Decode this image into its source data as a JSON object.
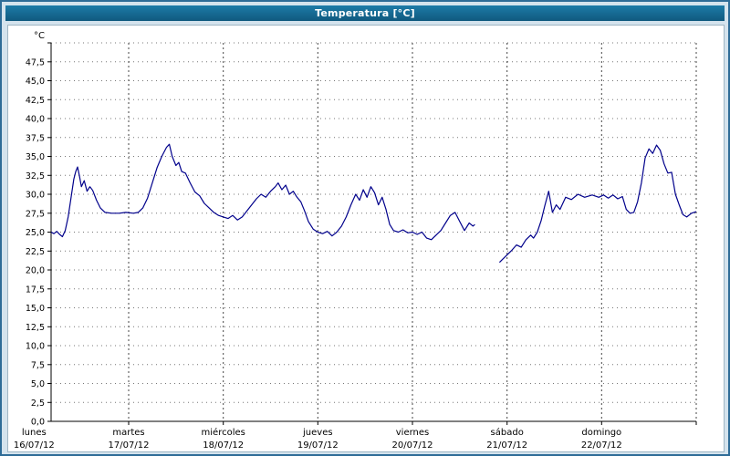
{
  "window": {
    "title": "Temperatura [°C]"
  },
  "colors": {
    "title_bar": "#16688e",
    "title_text": "#ffffff",
    "background": "#d4e3ed",
    "panel": "#ffffff",
    "axis": "#000000",
    "grid_horizontal": "#777777",
    "grid_vertical": "#444444",
    "line": "#00008b"
  },
  "chart_data": {
    "type": "line",
    "title": "Temperatura [°C]",
    "unit_label": "°C",
    "ylim": [
      0,
      50
    ],
    "ytick_step": 2.5,
    "ytick_labels": [
      "0,0",
      "2,5",
      "5,0",
      "7,5",
      "10,0",
      "12,5",
      "15,0",
      "17,5",
      "20,0",
      "22,5",
      "25,0",
      "27,5",
      "30,0",
      "32,5",
      "35,0",
      "37,5",
      "40,0",
      "42,5",
      "45,0",
      "47,5"
    ],
    "grid": true,
    "legend": "none",
    "x_range": [
      0.18,
      7.0
    ],
    "x_days": [
      {
        "name": "lunes",
        "date": "16/07/12"
      },
      {
        "name": "martes",
        "date": "17/07/12"
      },
      {
        "name": "miércoles",
        "date": "18/07/12"
      },
      {
        "name": "jueves",
        "date": "19/07/12"
      },
      {
        "name": "viernes",
        "date": "20/07/12"
      },
      {
        "name": "sábado",
        "date": "21/07/12"
      },
      {
        "name": "domingo",
        "date": "22/07/12"
      }
    ],
    "series": [
      {
        "name": "Temperatura",
        "color": "#00008b",
        "points": [
          [
            0.18,
            25.0
          ],
          [
            0.21,
            24.8
          ],
          [
            0.24,
            25.1
          ],
          [
            0.27,
            24.7
          ],
          [
            0.3,
            24.4
          ],
          [
            0.33,
            25.2
          ],
          [
            0.36,
            27.0
          ],
          [
            0.39,
            29.5
          ],
          [
            0.42,
            32.0
          ],
          [
            0.44,
            33.0
          ],
          [
            0.46,
            33.6
          ],
          [
            0.48,
            32.4
          ],
          [
            0.5,
            31.0
          ],
          [
            0.53,
            31.8
          ],
          [
            0.56,
            30.4
          ],
          [
            0.59,
            31.0
          ],
          [
            0.62,
            30.5
          ],
          [
            0.66,
            29.2
          ],
          [
            0.7,
            28.2
          ],
          [
            0.75,
            27.6
          ],
          [
            0.82,
            27.5
          ],
          [
            0.9,
            27.5
          ],
          [
            0.97,
            27.6
          ],
          [
            1.05,
            27.5
          ],
          [
            1.1,
            27.6
          ],
          [
            1.15,
            28.2
          ],
          [
            1.2,
            29.5
          ],
          [
            1.25,
            31.5
          ],
          [
            1.3,
            33.5
          ],
          [
            1.35,
            35.0
          ],
          [
            1.4,
            36.2
          ],
          [
            1.43,
            36.6
          ],
          [
            1.46,
            35.0
          ],
          [
            1.5,
            33.8
          ],
          [
            1.53,
            34.2
          ],
          [
            1.56,
            33.0
          ],
          [
            1.6,
            32.8
          ],
          [
            1.65,
            31.5
          ],
          [
            1.7,
            30.3
          ],
          [
            1.75,
            29.8
          ],
          [
            1.8,
            28.8
          ],
          [
            1.85,
            28.2
          ],
          [
            1.9,
            27.6
          ],
          [
            1.95,
            27.2
          ],
          [
            2.0,
            27.0
          ],
          [
            2.05,
            26.8
          ],
          [
            2.1,
            27.2
          ],
          [
            2.15,
            26.6
          ],
          [
            2.2,
            27.0
          ],
          [
            2.25,
            27.8
          ],
          [
            2.3,
            28.6
          ],
          [
            2.35,
            29.4
          ],
          [
            2.4,
            30.0
          ],
          [
            2.45,
            29.6
          ],
          [
            2.5,
            30.4
          ],
          [
            2.55,
            31.0
          ],
          [
            2.58,
            31.5
          ],
          [
            2.62,
            30.6
          ],
          [
            2.66,
            31.2
          ],
          [
            2.7,
            30.0
          ],
          [
            2.74,
            30.4
          ],
          [
            2.78,
            29.6
          ],
          [
            2.82,
            29.0
          ],
          [
            2.86,
            27.8
          ],
          [
            2.9,
            26.4
          ],
          [
            2.95,
            25.4
          ],
          [
            3.0,
            25.0
          ],
          [
            3.05,
            24.8
          ],
          [
            3.1,
            25.1
          ],
          [
            3.15,
            24.5
          ],
          [
            3.2,
            25.0
          ],
          [
            3.25,
            25.8
          ],
          [
            3.3,
            27.0
          ],
          [
            3.35,
            28.6
          ],
          [
            3.4,
            30.0
          ],
          [
            3.44,
            29.2
          ],
          [
            3.48,
            30.6
          ],
          [
            3.52,
            29.6
          ],
          [
            3.56,
            31.0
          ],
          [
            3.6,
            30.2
          ],
          [
            3.64,
            28.6
          ],
          [
            3.68,
            29.6
          ],
          [
            3.72,
            28.0
          ],
          [
            3.76,
            26.0
          ],
          [
            3.8,
            25.2
          ],
          [
            3.85,
            25.0
          ],
          [
            3.9,
            25.3
          ],
          [
            3.95,
            24.9
          ],
          [
            4.0,
            25.0
          ],
          [
            4.05,
            24.7
          ],
          [
            4.1,
            25.0
          ],
          [
            4.15,
            24.2
          ],
          [
            4.2,
            24.0
          ],
          [
            4.25,
            24.6
          ],
          [
            4.3,
            25.2
          ],
          [
            4.35,
            26.2
          ],
          [
            4.4,
            27.2
          ],
          [
            4.45,
            27.6
          ],
          [
            4.5,
            26.4
          ],
          [
            4.55,
            25.2
          ],
          [
            4.6,
            26.2
          ],
          [
            4.64,
            25.8
          ],
          [
            4.66,
            26.0
          ],
          null,
          [
            4.92,
            21.0
          ],
          [
            5.0,
            22.0
          ],
          [
            5.05,
            22.6
          ],
          [
            5.1,
            23.3
          ],
          [
            5.15,
            23.0
          ],
          [
            5.2,
            24.0
          ],
          [
            5.25,
            24.6
          ],
          [
            5.28,
            24.2
          ],
          [
            5.32,
            25.0
          ],
          [
            5.36,
            26.5
          ],
          [
            5.4,
            28.5
          ],
          [
            5.44,
            30.4
          ],
          [
            5.48,
            27.6
          ],
          [
            5.52,
            28.6
          ],
          [
            5.56,
            28.0
          ],
          [
            5.62,
            29.6
          ],
          [
            5.68,
            29.3
          ],
          [
            5.75,
            30.0
          ],
          [
            5.82,
            29.6
          ],
          [
            5.9,
            29.9
          ],
          [
            5.97,
            29.6
          ],
          [
            6.02,
            29.9
          ],
          [
            6.07,
            29.5
          ],
          [
            6.12,
            29.9
          ],
          [
            6.17,
            29.4
          ],
          [
            6.22,
            29.7
          ],
          [
            6.26,
            28.0
          ],
          [
            6.3,
            27.5
          ],
          [
            6.34,
            27.6
          ],
          [
            6.38,
            29.0
          ],
          [
            6.42,
            31.5
          ],
          [
            6.46,
            34.8
          ],
          [
            6.5,
            36.0
          ],
          [
            6.54,
            35.4
          ],
          [
            6.58,
            36.5
          ],
          [
            6.62,
            35.8
          ],
          [
            6.66,
            34.0
          ],
          [
            6.7,
            32.8
          ],
          [
            6.74,
            32.9
          ],
          [
            6.78,
            30.0
          ],
          [
            6.82,
            28.6
          ],
          [
            6.86,
            27.3
          ],
          [
            6.9,
            27.0
          ],
          [
            6.95,
            27.5
          ],
          [
            7.0,
            27.7
          ]
        ]
      }
    ]
  }
}
